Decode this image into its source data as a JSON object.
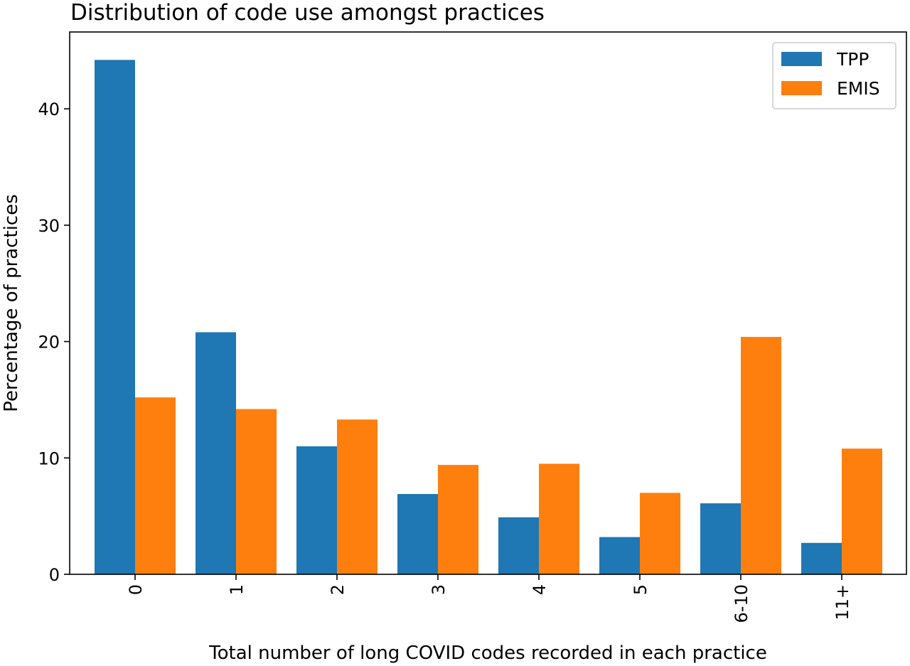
{
  "chart_data": {
    "type": "bar",
    "title": "Distribution of code use amongst practices",
    "xlabel": "Total number of long COVID codes recorded in each practice",
    "ylabel": "Percentage of practices",
    "categories": [
      "0",
      "1",
      "2",
      "3",
      "4",
      "5",
      "6-10",
      "11+"
    ],
    "series": [
      {
        "name": "TPP",
        "color": "#1f77b4",
        "values": [
          44.2,
          20.8,
          11.0,
          6.9,
          4.9,
          3.2,
          6.1,
          2.7
        ]
      },
      {
        "name": "EMIS",
        "color": "#ff7f0e",
        "values": [
          15.2,
          14.2,
          13.3,
          9.4,
          9.5,
          7.0,
          20.4,
          10.8
        ]
      }
    ],
    "ylim": [
      0,
      46.6
    ],
    "yticks": [
      0,
      10,
      20,
      30,
      40
    ],
    "grid": false,
    "legend_position": "top-right"
  }
}
